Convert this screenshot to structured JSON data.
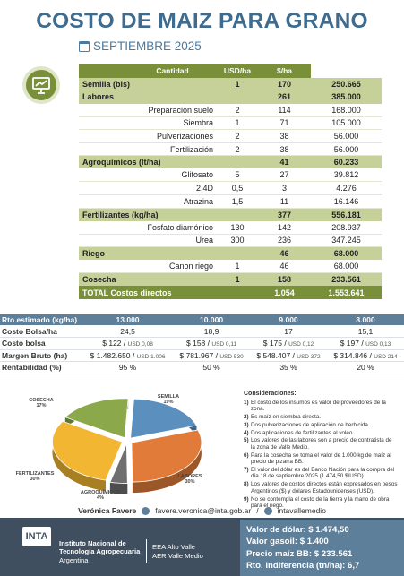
{
  "header": {
    "title": "COSTO DE MAIZ PARA GRANO",
    "subtitle": "SEPTIEMBRE 2025"
  },
  "cost_table": {
    "headers": [
      "",
      "Cantidad",
      "USD/ha",
      "$/ha"
    ],
    "rows": [
      {
        "type": "cat",
        "label": "Semilla (bls)",
        "qty": "1",
        "usd": "170",
        "ars": "250.665"
      },
      {
        "type": "cat",
        "label": "Labores",
        "qty": "",
        "usd": "261",
        "ars": "385.000"
      },
      {
        "type": "sub",
        "label": "Preparación suelo",
        "qty": "2",
        "usd": "114",
        "ars": "168.000"
      },
      {
        "type": "sub",
        "label": "Siembra",
        "qty": "1",
        "usd": "71",
        "ars": "105.000"
      },
      {
        "type": "sub",
        "label": "Pulverizaciones",
        "qty": "2",
        "usd": "38",
        "ars": "56.000"
      },
      {
        "type": "sub",
        "label": "Fertilización",
        "qty": "2",
        "usd": "38",
        "ars": "56.000"
      },
      {
        "type": "cat",
        "label": "Agroquímicos (lt/ha)",
        "qty": "",
        "usd": "41",
        "ars": "60.233"
      },
      {
        "type": "sub",
        "label": "Glifosato",
        "qty": "5",
        "usd": "27",
        "ars": "39.812"
      },
      {
        "type": "sub",
        "label": "2,4D",
        "qty": "0,5",
        "usd": "3",
        "ars": "4.276"
      },
      {
        "type": "sub",
        "label": "Atrazina",
        "qty": "1,5",
        "usd": "11",
        "ars": "16.146"
      },
      {
        "type": "cat",
        "label": "Fertilizantes (kg/ha)",
        "qty": "",
        "usd": "377",
        "ars": "556.181"
      },
      {
        "type": "sub",
        "label": "Fosfato diamónico",
        "qty": "130",
        "usd": "142",
        "ars": "208.937"
      },
      {
        "type": "sub",
        "label": "Urea",
        "qty": "300",
        "usd": "236",
        "ars": "347.245"
      },
      {
        "type": "cat",
        "label": "Riego",
        "qty": "",
        "usd": "46",
        "ars": "68.000"
      },
      {
        "type": "sub",
        "label": "Canon riego",
        "qty": "1",
        "usd": "46",
        "ars": "68.000"
      },
      {
        "type": "cat",
        "label": "Cosecha",
        "qty": "1",
        "usd": "158",
        "ars": "233.561"
      },
      {
        "type": "total",
        "label": "TOTAL Costos directos",
        "qty": "",
        "usd": "1.054",
        "ars": "1.553.641"
      }
    ]
  },
  "sensitivity": {
    "header_label": "Rto estimado (kg/ha)",
    "yields": [
      "13.000",
      "10.000",
      "9.000",
      "8.000"
    ],
    "rows": [
      {
        "label": "Costo Bolsa/ha",
        "cells": [
          {
            "main": "24,5",
            "usd": ""
          },
          {
            "main": "18,9",
            "usd": ""
          },
          {
            "main": "17",
            "usd": ""
          },
          {
            "main": "15,1",
            "usd": ""
          }
        ]
      },
      {
        "label": "Costo bolsa",
        "cells": [
          {
            "main": "$ 122 /",
            "usd": "USD 0,08"
          },
          {
            "main": "$ 158 /",
            "usd": "USD 0,11"
          },
          {
            "main": "$ 175 /",
            "usd": "USD 0,12"
          },
          {
            "main": "$ 197 /",
            "usd": "USD 0,13"
          }
        ]
      },
      {
        "label": "Margen Bruto (ha)",
        "cells": [
          {
            "main": "$ 1.482.650 /",
            "usd": "USD 1.006"
          },
          {
            "main": "$ 781.967 /",
            "usd": "USD 530"
          },
          {
            "main": "$ 548.407 /",
            "usd": "USD 372"
          },
          {
            "main": "$ 314.846 /",
            "usd": "USD 214"
          }
        ]
      },
      {
        "label": "Rentabilidad (%)",
        "cells": [
          {
            "main": "95 %",
            "usd": ""
          },
          {
            "main": "50 %",
            "usd": ""
          },
          {
            "main": "35 %",
            "usd": ""
          },
          {
            "main": "20 %",
            "usd": ""
          }
        ]
      }
    ]
  },
  "chart_data": {
    "type": "pie",
    "slices": [
      {
        "label": "SEMILLA",
        "value": 19,
        "pct_text": "19%",
        "color": "#5b8fbe"
      },
      {
        "label": "LABORES",
        "value": 30,
        "pct_text": "30%",
        "color": "#e07b39"
      },
      {
        "label": "AGROQUÍMICOS",
        "value": 4,
        "pct_text": "4%",
        "color": "#6f6f6f"
      },
      {
        "label": "FERTILIZANTES",
        "value": 30,
        "pct_text": "30%",
        "color": "#f2b632"
      },
      {
        "label": "COSECHA",
        "value": 17,
        "pct_text": "17%",
        "color": "#8ba84a"
      }
    ]
  },
  "notes": {
    "title": "Consideraciones:",
    "items": [
      {
        "n": "1)",
        "text": "El costo de los insumos es valor de proveedores de la zona."
      },
      {
        "n": "2)",
        "text": "Es maíz en siembra directa."
      },
      {
        "n": "3)",
        "text": "Dos pulverizaciones de aplicación de herbicida."
      },
      {
        "n": "4)",
        "text": "Dos aplicaciones de fertilizantes al voleo."
      },
      {
        "n": "5)",
        "text": "Los valores de las labores son a precio de contratista de la zona de Valle Medio."
      },
      {
        "n": "6)",
        "text": "Para la cosecha se toma el valor de 1.000 kg de maíz al precio de pizarra BB."
      },
      {
        "n": "7)",
        "text": "El valor del dólar es del Banco Nación para la compra del día 18 de septiembre 2025 (1.474,50 $/USD)."
      },
      {
        "n": "8)",
        "text": "Los valores de costos directos están expresados en pesos Argentinos ($) y dólares Estadounidenses (USD)."
      },
      {
        "n": "9)",
        "text": "No se contempla el costo de la tierra y la mano de obra para el riego."
      }
    ]
  },
  "contact": {
    "name": "Verónica Favere",
    "email": "favere.veronica@inta.gob.ar",
    "separator": "/",
    "handle": "intavallemedio"
  },
  "footer": {
    "logo_text": "INTA",
    "inst_line1": "Instituto Nacional de",
    "inst_line2": "Tecnología Agropecuaria",
    "inst_line3": "Argentina",
    "eea_line1": "EEA Alto Valle",
    "eea_line2": "AER Valle Medio",
    "rates": [
      "Valor de dólar: $ 1.474,50",
      "Valor gasoil: $ 1.400",
      "Precio maíz BB: $ 233.561",
      "Rto. indiferencia (tn/ha): 6,7"
    ]
  },
  "colors": {
    "title": "#3e6b8e",
    "olive": "#7a8f3a",
    "olive_light": "#c6d19a",
    "steel": "#5e7f9a",
    "footer_dark": "#3f4f5f"
  }
}
